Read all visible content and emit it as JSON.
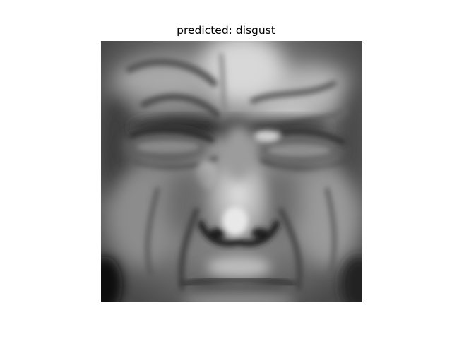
{
  "figure": {
    "title": "predicted: disgust",
    "image": {
      "subject": "grayscale close-up of a human face, eyes squinted, brow furrowed, nose wrinkled",
      "colormap": "grayscale"
    }
  }
}
